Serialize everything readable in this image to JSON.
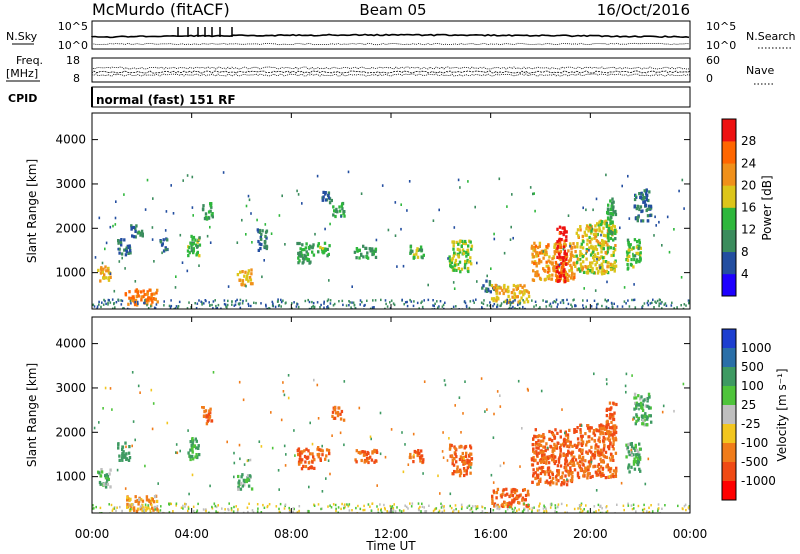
{
  "header": {
    "station": "McMurdo (fitACF)",
    "beam": "Beam 05",
    "date": "16/Oct/2016"
  },
  "top_panel": {
    "left_label": "N.Sky",
    "left_ticks": [
      "10^5",
      "10^0"
    ],
    "right_label": "N.Search",
    "right_ticks": [
      "10^5",
      "10^0"
    ]
  },
  "freq_panel": {
    "left_label_line1": "Freq.",
    "left_label_line2": "[MHz]",
    "left_ticks": [
      "18",
      "8"
    ],
    "right_label": "Nave",
    "right_ticks": [
      "60",
      "0"
    ]
  },
  "cpid_panel": {
    "label": "CPID",
    "text": "normal (fast) 151 RF"
  },
  "power_panel": {
    "ylabel": "Slant Range [km]",
    "yticks": [
      "1000",
      "2000",
      "3000",
      "4000"
    ],
    "colorbar_label": "Power [dB]",
    "colorbar_ticks": [
      "4",
      "8",
      "12",
      "16",
      "20",
      "24",
      "28"
    ],
    "colorbar_colors": [
      "#1e00ff",
      "#234ea0",
      "#3b8c5d",
      "#2eb73c",
      "#dcc51a",
      "#f0901a",
      "#ff6600",
      "#ee1111"
    ]
  },
  "velocity_panel": {
    "ylabel": "Slant Range [km]",
    "yticks": [
      "1000",
      "2000",
      "3000",
      "4000"
    ],
    "colorbar_label": "Velocity [m s⁻¹]",
    "colorbar_ticks": [
      "1000",
      "500",
      "100",
      "25",
      "-25",
      "-100",
      "-500",
      "-1000"
    ],
    "colorbar_colors": [
      "#1d3fd0",
      "#2a6fa8",
      "#3e9a62",
      "#4fc43b",
      "#bfbfbf",
      "#f2c61f",
      "#f07c1a",
      "#f04a14",
      "#ff0000"
    ]
  },
  "xaxis": {
    "label": "Time UT",
    "ticks": [
      "00:00",
      "04:00",
      "08:00",
      "12:00",
      "16:00",
      "20:00",
      "00:00"
    ]
  },
  "chart_data": [
    {
      "type": "heatmap",
      "title": "Power",
      "ylabel": "Slant Range [km]",
      "xlabel": "Time UT",
      "xlim": [
        "00:00",
        "24:00"
      ],
      "ylim": [
        180,
        4600
      ],
      "colorbar": {
        "label": "Power [dB]",
        "range": [
          0,
          32
        ]
      },
      "regions": [
        {
          "t0": 0.2,
          "t1": 0.7,
          "r0": 800,
          "r1": 1200,
          "value": 20
        },
        {
          "t0": 1.3,
          "t1": 2.6,
          "r0": 300,
          "r1": 650,
          "value": 24
        },
        {
          "t0": 1.0,
          "t1": 1.5,
          "r0": 1400,
          "r1": 1800,
          "value": 8
        },
        {
          "t0": 1.5,
          "t1": 2.0,
          "r0": 1800,
          "r1": 2100,
          "value": 8
        },
        {
          "t0": 2.7,
          "t1": 3.0,
          "r0": 1500,
          "r1": 1800,
          "value": 8
        },
        {
          "t0": 3.8,
          "t1": 4.3,
          "r0": 1400,
          "r1": 1900,
          "value": 14
        },
        {
          "t0": 4.4,
          "t1": 4.8,
          "r0": 2200,
          "r1": 2600,
          "value": 12
        },
        {
          "t0": 5.8,
          "t1": 6.4,
          "r0": 750,
          "r1": 1100,
          "value": 20
        },
        {
          "t0": 6.6,
          "t1": 7.0,
          "r0": 1500,
          "r1": 2000,
          "value": 8
        },
        {
          "t0": 8.2,
          "t1": 8.9,
          "r0": 1200,
          "r1": 1700,
          "value": 12
        },
        {
          "t0": 9.2,
          "t1": 9.6,
          "r0": 2600,
          "r1": 2900,
          "value": 8
        },
        {
          "t0": 9.6,
          "t1": 10.1,
          "r0": 2300,
          "r1": 2600,
          "value": 12
        },
        {
          "t0": 9.0,
          "t1": 9.5,
          "r0": 1400,
          "r1": 1700,
          "value": 14
        },
        {
          "t0": 10.5,
          "t1": 11.4,
          "r0": 1350,
          "r1": 1650,
          "value": 12
        },
        {
          "t0": 12.7,
          "t1": 13.3,
          "r0": 1350,
          "r1": 1650,
          "value": 14
        },
        {
          "t0": 14.3,
          "t1": 15.2,
          "r0": 1050,
          "r1": 1750,
          "value": 16
        },
        {
          "t0": 15.6,
          "t1": 16.3,
          "r0": 600,
          "r1": 850,
          "value": 8
        },
        {
          "t0": 16.0,
          "t1": 17.5,
          "r0": 350,
          "r1": 750,
          "value": 20
        },
        {
          "t0": 17.6,
          "t1": 19.4,
          "r0": 850,
          "r1": 1700,
          "value": 22
        },
        {
          "t0": 18.6,
          "t1": 19.0,
          "r0": 800,
          "r1": 2100,
          "value": 30
        },
        {
          "t0": 19.4,
          "t1": 21.0,
          "r0": 1000,
          "r1": 2200,
          "value": 18
        },
        {
          "t0": 20.6,
          "t1": 21.0,
          "r0": 1800,
          "r1": 2700,
          "value": 12
        },
        {
          "t0": 21.4,
          "t1": 22.0,
          "r0": 1100,
          "r1": 1800,
          "value": 14
        },
        {
          "t0": 21.7,
          "t1": 22.4,
          "r0": 2200,
          "r1": 2900,
          "value": 8
        }
      ]
    },
    {
      "type": "heatmap",
      "title": "Velocity",
      "ylabel": "Slant Range [km]",
      "xlabel": "Time UT",
      "xlim": [
        "00:00",
        "24:00"
      ],
      "ylim": [
        180,
        4600
      ],
      "colorbar": {
        "label": "Velocity [m s⁻¹]",
        "range": [
          -1000,
          1000
        ]
      },
      "regions": [
        {
          "t0": 0.2,
          "t1": 0.7,
          "r0": 800,
          "r1": 1200,
          "value": 100
        },
        {
          "t0": 1.3,
          "t1": 2.6,
          "r0": 250,
          "r1": 600,
          "value": -100
        },
        {
          "t0": 1.0,
          "t1": 1.5,
          "r0": 1400,
          "r1": 1800,
          "value": 300
        },
        {
          "t0": 3.8,
          "t1": 4.3,
          "r0": 1400,
          "r1": 1900,
          "value": 100
        },
        {
          "t0": 4.4,
          "t1": 4.8,
          "r0": 2200,
          "r1": 2600,
          "value": -500
        },
        {
          "t0": 5.8,
          "t1": 6.4,
          "r0": 750,
          "r1": 1100,
          "value": 100
        },
        {
          "t0": 8.2,
          "t1": 8.9,
          "r0": 1200,
          "r1": 1700,
          "value": -500
        },
        {
          "t0": 9.6,
          "t1": 10.1,
          "r0": 2300,
          "r1": 2600,
          "value": -500
        },
        {
          "t0": 9.0,
          "t1": 9.5,
          "r0": 1400,
          "r1": 1700,
          "value": -500
        },
        {
          "t0": 10.5,
          "t1": 11.4,
          "r0": 1350,
          "r1": 1650,
          "value": -500
        },
        {
          "t0": 12.7,
          "t1": 13.3,
          "r0": 1350,
          "r1": 1650,
          "value": -500
        },
        {
          "t0": 14.3,
          "t1": 15.2,
          "r0": 1050,
          "r1": 1750,
          "value": -500
        },
        {
          "t0": 16.0,
          "t1": 17.5,
          "r0": 350,
          "r1": 750,
          "value": -500
        },
        {
          "t0": 17.6,
          "t1": 19.4,
          "r0": 850,
          "r1": 2100,
          "value": -500
        },
        {
          "t0": 19.4,
          "t1": 21.0,
          "r0": 1000,
          "r1": 2200,
          "value": -500
        },
        {
          "t0": 20.6,
          "t1": 21.0,
          "r0": 1800,
          "r1": 2700,
          "value": -500
        },
        {
          "t0": 21.4,
          "t1": 22.0,
          "r0": 1100,
          "r1": 1800,
          "value": 100
        },
        {
          "t0": 21.7,
          "t1": 22.4,
          "r0": 2200,
          "r1": 2900,
          "value": 100
        }
      ]
    }
  ]
}
